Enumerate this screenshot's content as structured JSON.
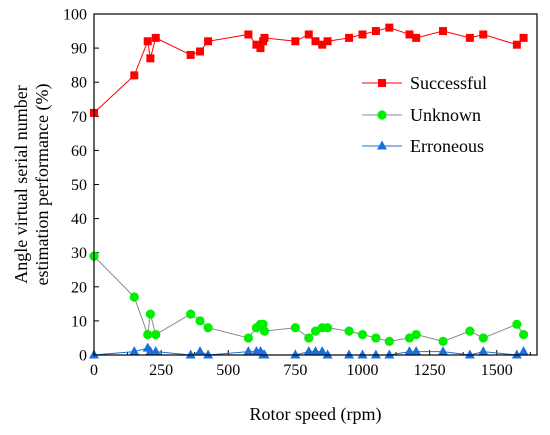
{
  "chart_data": {
    "type": "line",
    "xlabel": "Rotor speed (rpm)",
    "ylabel_lines": [
      "Angle virtual serial number",
      "estimation performance (%)"
    ],
    "xlim": [
      0,
      1650
    ],
    "ylim": [
      0,
      100
    ],
    "xticks": [
      0,
      250,
      500,
      750,
      1000,
      1250,
      1500
    ],
    "xticks_minor_step": 125,
    "yticks": [
      0,
      10,
      20,
      30,
      40,
      50,
      60,
      70,
      80,
      90,
      100
    ],
    "legend_position": "top-right",
    "grid": false,
    "series": [
      {
        "name": "Successful",
        "color": "#ff0000",
        "marker": "square",
        "points": [
          [
            0,
            71
          ],
          [
            150,
            82
          ],
          [
            200,
            92
          ],
          [
            210,
            87
          ],
          [
            230,
            93
          ],
          [
            360,
            88
          ],
          [
            395,
            89
          ],
          [
            425,
            92
          ],
          [
            575,
            94
          ],
          [
            605,
            91
          ],
          [
            620,
            90
          ],
          [
            630,
            92
          ],
          [
            635,
            93
          ],
          [
            750,
            92
          ],
          [
            800,
            94
          ],
          [
            825,
            92
          ],
          [
            850,
            91
          ],
          [
            870,
            92
          ],
          [
            950,
            93
          ],
          [
            1000,
            94
          ],
          [
            1050,
            95
          ],
          [
            1100,
            96
          ],
          [
            1175,
            94
          ],
          [
            1200,
            93
          ],
          [
            1300,
            95
          ],
          [
            1400,
            93
          ],
          [
            1450,
            94
          ],
          [
            1575,
            91
          ],
          [
            1600,
            93
          ]
        ]
      },
      {
        "name": "Unknown",
        "color": "#00ee00",
        "marker": "circle",
        "points": [
          [
            0,
            29
          ],
          [
            150,
            17
          ],
          [
            200,
            6
          ],
          [
            210,
            12
          ],
          [
            230,
            6
          ],
          [
            360,
            12
          ],
          [
            395,
            10
          ],
          [
            425,
            8
          ],
          [
            575,
            5
          ],
          [
            605,
            8
          ],
          [
            620,
            9
          ],
          [
            630,
            9
          ],
          [
            635,
            7
          ],
          [
            750,
            8
          ],
          [
            800,
            5
          ],
          [
            825,
            7
          ],
          [
            850,
            8
          ],
          [
            870,
            8
          ],
          [
            950,
            7
          ],
          [
            1000,
            6
          ],
          [
            1050,
            5
          ],
          [
            1100,
            4
          ],
          [
            1175,
            5
          ],
          [
            1200,
            6
          ],
          [
            1300,
            4
          ],
          [
            1400,
            7
          ],
          [
            1450,
            5
          ],
          [
            1575,
            9
          ],
          [
            1600,
            6
          ]
        ]
      },
      {
        "name": "Erroneous",
        "color": "#1a6fdf",
        "marker": "triangle",
        "points": [
          [
            0,
            0
          ],
          [
            150,
            1
          ],
          [
            200,
            2
          ],
          [
            210,
            1
          ],
          [
            230,
            1
          ],
          [
            360,
            0
          ],
          [
            395,
            1
          ],
          [
            425,
            0
          ],
          [
            575,
            1
          ],
          [
            605,
            1
          ],
          [
            620,
            1
          ],
          [
            630,
            0
          ],
          [
            635,
            0
          ],
          [
            750,
            0
          ],
          [
            800,
            1
          ],
          [
            825,
            1
          ],
          [
            850,
            1
          ],
          [
            870,
            0
          ],
          [
            950,
            0
          ],
          [
            1000,
            0
          ],
          [
            1050,
            0
          ],
          [
            1100,
            0
          ],
          [
            1175,
            1
          ],
          [
            1200,
            1
          ],
          [
            1300,
            1
          ],
          [
            1400,
            0
          ],
          [
            1450,
            1
          ],
          [
            1575,
            0
          ],
          [
            1600,
            1
          ]
        ]
      }
    ]
  }
}
